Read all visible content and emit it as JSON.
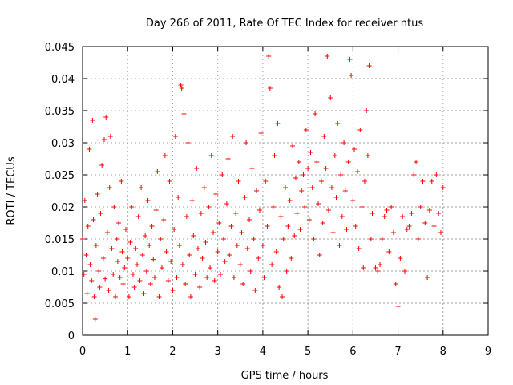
{
  "chart_data": {
    "type": "scatter",
    "title": "Day 266 of 2011, Rate Of TEC Index for receiver ntus",
    "xlabel": "GPS time / hours",
    "ylabel": "ROTI / TECUs",
    "xlim": [
      0,
      9
    ],
    "ylim": [
      0,
      0.045
    ],
    "xticks": [
      "0",
      "1",
      "2",
      "3",
      "4",
      "5",
      "6",
      "7",
      "8",
      "9"
    ],
    "yticks": [
      "0",
      "0.005",
      "0.01",
      "0.015",
      "0.02",
      "0.025",
      "0.03",
      "0.035",
      "0.04",
      "0.045"
    ],
    "grid": true,
    "marker": "+",
    "color": "#ff0000",
    "series": [
      {
        "points": [
          [
            0.0,
            0.015
          ],
          [
            0.03,
            0.0095
          ],
          [
            0.05,
            0.021
          ],
          [
            0.08,
            0.0125
          ],
          [
            0.1,
            0.0065
          ],
          [
            0.12,
            0.017
          ],
          [
            0.15,
            0.029
          ],
          [
            0.17,
            0.011
          ],
          [
            0.2,
            0.0085
          ],
          [
            0.22,
            0.0335
          ],
          [
            0.24,
            0.018
          ],
          [
            0.26,
            0.006
          ],
          [
            0.28,
            0.0025
          ],
          [
            0.3,
            0.014
          ],
          [
            0.33,
            0.022
          ],
          [
            0.36,
            0.01
          ],
          [
            0.38,
            0.0075
          ],
          [
            0.4,
            0.019
          ],
          [
            0.43,
            0.0265
          ],
          [
            0.46,
            0.012
          ],
          [
            0.48,
            0.0305
          ],
          [
            0.5,
            0.0088
          ],
          [
            0.52,
            0.034
          ],
          [
            0.55,
            0.016
          ],
          [
            0.58,
            0.007
          ],
          [
            0.6,
            0.023
          ],
          [
            0.62,
            0.031
          ],
          [
            0.65,
            0.0135
          ],
          [
            0.68,
            0.0095
          ],
          [
            0.7,
            0.02
          ],
          [
            0.73,
            0.006
          ],
          [
            0.76,
            0.015
          ],
          [
            0.78,
            0.0115
          ],
          [
            0.8,
            0.0175
          ],
          [
            0.83,
            0.009
          ],
          [
            0.86,
            0.024
          ],
          [
            0.88,
            0.013
          ],
          [
            0.9,
            0.008
          ],
          [
            0.93,
            0.0105
          ],
          [
            0.96,
            0.0165
          ],
          [
            1.0,
            0.012
          ],
          [
            1.03,
            0.006
          ],
          [
            1.06,
            0.0145
          ],
          [
            1.09,
            0.02
          ],
          [
            1.12,
            0.0095
          ],
          [
            1.15,
            0.0075
          ],
          [
            1.18,
            0.0135
          ],
          [
            1.21,
            0.011
          ],
          [
            1.24,
            0.0185
          ],
          [
            1.27,
            0.0085
          ],
          [
            1.3,
            0.023
          ],
          [
            1.33,
            0.0125
          ],
          [
            1.36,
            0.0065
          ],
          [
            1.39,
            0.0155
          ],
          [
            1.42,
            0.01
          ],
          [
            1.45,
            0.021
          ],
          [
            1.48,
            0.014
          ],
          [
            1.51,
            0.008
          ],
          [
            1.54,
            0.017
          ],
          [
            1.57,
            0.0118
          ],
          [
            1.6,
            0.009
          ],
          [
            1.63,
            0.0195
          ],
          [
            1.66,
            0.0255
          ],
          [
            1.7,
            0.006
          ],
          [
            1.73,
            0.015
          ],
          [
            1.76,
            0.0105
          ],
          [
            1.8,
            0.018
          ],
          [
            1.83,
            0.028
          ],
          [
            1.86,
            0.013
          ],
          [
            1.9,
            0.0085
          ],
          [
            1.93,
            0.024
          ],
          [
            1.96,
            0.0115
          ],
          [
            2.0,
            0.007
          ],
          [
            2.03,
            0.0165
          ],
          [
            2.06,
            0.031
          ],
          [
            2.09,
            0.009
          ],
          [
            2.12,
            0.0215
          ],
          [
            2.15,
            0.014
          ],
          [
            2.18,
            0.039
          ],
          [
            2.2,
            0.0385
          ],
          [
            2.22,
            0.011
          ],
          [
            2.25,
            0.0345
          ],
          [
            2.28,
            0.008
          ],
          [
            2.31,
            0.0185
          ],
          [
            2.34,
            0.03
          ],
          [
            2.37,
            0.0125
          ],
          [
            2.4,
            0.006
          ],
          [
            2.43,
            0.021
          ],
          [
            2.46,
            0.0155
          ],
          [
            2.5,
            0.0095
          ],
          [
            2.53,
            0.026
          ],
          [
            2.56,
            0.0135
          ],
          [
            2.6,
            0.0075
          ],
          [
            2.63,
            0.019
          ],
          [
            2.66,
            0.012
          ],
          [
            2.7,
            0.023
          ],
          [
            2.73,
            0.0145
          ],
          [
            2.76,
            0.009
          ],
          [
            2.8,
            0.02
          ],
          [
            2.83,
            0.0105
          ],
          [
            2.86,
            0.028
          ],
          [
            2.9,
            0.016
          ],
          [
            2.93,
            0.0085
          ],
          [
            2.96,
            0.022
          ],
          [
            3.0,
            0.013
          ],
          [
            3.03,
            0.0175
          ],
          [
            3.06,
            0.0095
          ],
          [
            3.1,
            0.025
          ],
          [
            3.13,
            0.015
          ],
          [
            3.16,
            0.0115
          ],
          [
            3.2,
            0.0205
          ],
          [
            3.23,
            0.0275
          ],
          [
            3.26,
            0.0125
          ],
          [
            3.3,
            0.017
          ],
          [
            3.33,
            0.031
          ],
          [
            3.36,
            0.009
          ],
          [
            3.4,
            0.019
          ],
          [
            3.43,
            0.014
          ],
          [
            3.46,
            0.024
          ],
          [
            3.5,
            0.011
          ],
          [
            3.53,
            0.016
          ],
          [
            3.56,
            0.008
          ],
          [
            3.6,
            0.0215
          ],
          [
            3.63,
            0.03
          ],
          [
            3.66,
            0.0135
          ],
          [
            3.7,
            0.018
          ],
          [
            3.73,
            0.01
          ],
          [
            3.76,
            0.026
          ],
          [
            3.8,
            0.015
          ],
          [
            3.83,
            0.007
          ],
          [
            3.86,
            0.0225
          ],
          [
            3.9,
            0.012
          ],
          [
            3.93,
            0.0195
          ],
          [
            3.96,
            0.0315
          ],
          [
            4.0,
            0.014
          ],
          [
            4.03,
            0.009
          ],
          [
            4.06,
            0.024
          ],
          [
            4.1,
            0.017
          ],
          [
            4.13,
            0.0435
          ],
          [
            4.16,
            0.0385
          ],
          [
            4.2,
            0.011
          ],
          [
            4.23,
            0.02
          ],
          [
            4.26,
            0.028
          ],
          [
            4.3,
            0.013
          ],
          [
            4.33,
            0.033
          ],
          [
            4.36,
            0.0075
          ],
          [
            4.4,
            0.0185
          ],
          [
            4.43,
            0.006
          ],
          [
            4.46,
            0.015
          ],
          [
            4.5,
            0.023
          ],
          [
            4.53,
            0.01
          ],
          [
            4.56,
            0.017
          ],
          [
            4.6,
            0.021
          ],
          [
            4.63,
            0.012
          ],
          [
            4.66,
            0.0295
          ],
          [
            4.7,
            0.0155
          ],
          [
            4.73,
            0.0245
          ],
          [
            4.76,
            0.019
          ],
          [
            4.8,
            0.027
          ],
          [
            4.83,
            0.0165
          ],
          [
            4.86,
            0.0225
          ],
          [
            4.9,
            0.025
          ],
          [
            4.93,
            0.02
          ],
          [
            4.96,
            0.032
          ],
          [
            5.0,
            0.026
          ],
          [
            5.03,
            0.018
          ],
          [
            5.06,
            0.0285
          ],
          [
            5.1,
            0.023
          ],
          [
            5.13,
            0.015
          ],
          [
            5.16,
            0.0345
          ],
          [
            5.2,
            0.027
          ],
          [
            5.23,
            0.0205
          ],
          [
            5.26,
            0.0125
          ],
          [
            5.3,
            0.024
          ],
          [
            5.33,
            0.0175
          ],
          [
            5.36,
            0.031
          ],
          [
            5.4,
            0.026
          ],
          [
            5.43,
            0.0435
          ],
          [
            5.46,
            0.0195
          ],
          [
            5.5,
            0.037
          ],
          [
            5.53,
            0.023
          ],
          [
            5.56,
            0.016
          ],
          [
            5.6,
            0.028
          ],
          [
            5.63,
            0.0215
          ],
          [
            5.66,
            0.033
          ],
          [
            5.7,
            0.014
          ],
          [
            5.73,
            0.025
          ],
          [
            5.76,
            0.0185
          ],
          [
            5.8,
            0.03
          ],
          [
            5.83,
            0.0225
          ],
          [
            5.86,
            0.0165
          ],
          [
            5.9,
            0.027
          ],
          [
            5.93,
            0.043
          ],
          [
            5.96,
            0.0405
          ],
          [
            6.0,
            0.021
          ],
          [
            6.03,
            0.029
          ],
          [
            6.06,
            0.017
          ],
          [
            6.1,
            0.0255
          ],
          [
            6.13,
            0.0135
          ],
          [
            6.16,
            0.032
          ],
          [
            6.2,
            0.02
          ],
          [
            6.23,
            0.0105
          ],
          [
            6.26,
            0.024
          ],
          [
            6.3,
            0.035
          ],
          [
            6.33,
            0.028
          ],
          [
            6.36,
            0.042
          ],
          [
            6.4,
            0.015
          ],
          [
            6.43,
            0.019
          ],
          [
            6.5,
            0.0105
          ],
          [
            6.55,
            0.01
          ],
          [
            6.6,
            0.011
          ],
          [
            6.65,
            0.015
          ],
          [
            6.7,
            0.0185
          ],
          [
            6.75,
            0.0195
          ],
          [
            6.8,
            0.013
          ],
          [
            6.85,
            0.02
          ],
          [
            6.9,
            0.016
          ],
          [
            6.95,
            0.008
          ],
          [
            7.0,
            0.0045
          ],
          [
            7.05,
            0.012
          ],
          [
            7.1,
            0.0185
          ],
          [
            7.15,
            0.01
          ],
          [
            7.2,
            0.0165
          ],
          [
            7.25,
            0.017
          ],
          [
            7.3,
            0.019
          ],
          [
            7.35,
            0.025
          ],
          [
            7.4,
            0.027
          ],
          [
            7.45,
            0.015
          ],
          [
            7.5,
            0.02
          ],
          [
            7.55,
            0.024
          ],
          [
            7.6,
            0.0175
          ],
          [
            7.65,
            0.009
          ],
          [
            7.7,
            0.0195
          ],
          [
            7.75,
            0.024
          ],
          [
            7.8,
            0.017
          ],
          [
            7.85,
            0.025
          ],
          [
            7.9,
            0.019
          ],
          [
            7.95,
            0.016
          ],
          [
            8.0,
            0.023
          ]
        ]
      }
    ]
  }
}
